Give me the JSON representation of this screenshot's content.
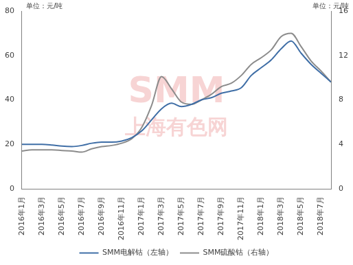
{
  "chart_data": {
    "type": "line",
    "ylabel": "单位：元/吨",
    "y2label": "单位：元/吨",
    "annotations": [
      "SMM",
      "上海有色网"
    ],
    "categories": [
      "2016年1月",
      null,
      "2016年3月",
      null,
      "2016年5月",
      null,
      "2016年7月",
      null,
      "2016年9月",
      null,
      "2016年11月",
      null,
      "2017年1月",
      null,
      "2017年3月",
      null,
      "2017年5月",
      null,
      "2017年7月",
      null,
      "2017年9月",
      null,
      "2017年11月",
      null,
      "2018年1月",
      null,
      "2018年3月",
      null,
      "2018年5月",
      null,
      "2018年7月",
      null
    ],
    "series": [
      {
        "name": "SMM电解钴（左轴）",
        "color": "#3f6ea6",
        "axis": "y",
        "values": [
          20,
          20,
          20,
          19.7,
          19.2,
          19,
          19.5,
          20.5,
          21,
          21,
          21.5,
          23,
          26,
          31,
          36,
          38.5,
          37,
          38,
          40,
          41,
          43,
          44,
          45.5,
          51,
          54.5,
          58,
          63,
          66.5,
          61,
          56,
          52,
          48
        ]
      },
      {
        "name": "SMM硫酸钴（右轴）",
        "color": "#8c8c8c",
        "axis": "y2",
        "values": [
          3.4,
          3.5,
          3.5,
          3.5,
          3.45,
          3.4,
          3.3,
          3.6,
          3.8,
          3.9,
          4.1,
          4.5,
          5.5,
          7.5,
          10.1,
          9,
          7.8,
          7.6,
          8,
          8.5,
          9.2,
          9.5,
          10.2,
          11.2,
          11.8,
          12.5,
          13.7,
          14,
          12.8,
          11.5,
          10.6,
          9.6
        ]
      }
    ],
    "ylim": [
      0,
      80
    ],
    "yticks": [
      0,
      20,
      40,
      60,
      80
    ],
    "y2lim": [
      0,
      16
    ],
    "y2ticks": [
      0,
      4,
      8,
      12,
      16
    ],
    "grid": false,
    "legend": "bottom"
  }
}
